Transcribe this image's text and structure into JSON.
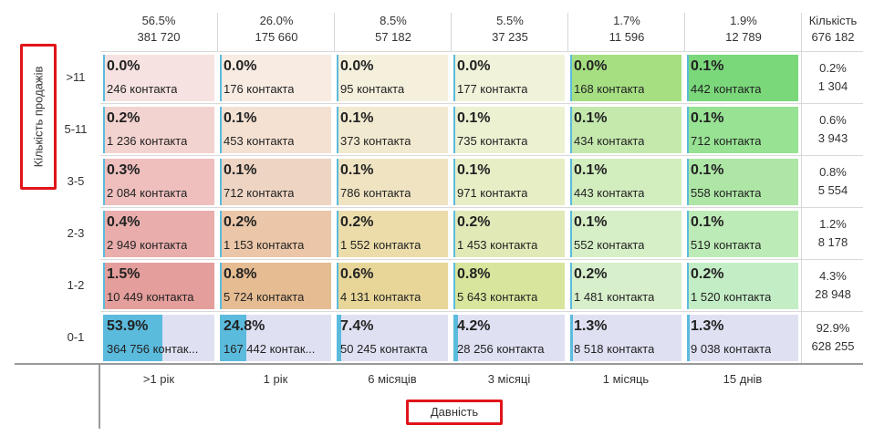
{
  "columns": [
    {
      "pct": "56.5%",
      "count": "381 720",
      "label": ">1 рік"
    },
    {
      "pct": "26.0%",
      "count": "175 660",
      "label": "1 рік"
    },
    {
      "pct": "8.5%",
      "count": "57 182",
      "label": "6 місяців"
    },
    {
      "pct": "5.5%",
      "count": "37 235",
      "label": "3 місяці"
    },
    {
      "pct": "1.7%",
      "count": "11 596",
      "label": "1 місяць"
    },
    {
      "pct": "1.9%",
      "count": "12 789",
      "label": "15 днів"
    }
  ],
  "total_header": {
    "label": "Кількість",
    "value": "676 182"
  },
  "y_axis_title": "Кількість продажів",
  "x_axis_title": "Давність",
  "rows": [
    {
      "label": ">11",
      "total_pct": "0.2%",
      "total_count": "1 304",
      "cells": [
        {
          "pct": "0.0%",
          "count": "246 контакта",
          "bg": "#f6e2e0"
        },
        {
          "pct": "0.0%",
          "count": "176 контакта",
          "bg": "#f7ebe2"
        },
        {
          "pct": "0.0%",
          "count": "95 контакта",
          "bg": "#f4f0dc"
        },
        {
          "pct": "0.0%",
          "count": "177 контакта",
          "bg": "#f0f3da"
        },
        {
          "pct": "0.0%",
          "count": "168 контакта",
          "bg": "#a6df82"
        },
        {
          "pct": "0.1%",
          "count": "442 контакта",
          "bg": "#7ad87a"
        }
      ]
    },
    {
      "label": "5-11",
      "total_pct": "0.6%",
      "total_count": "3 943",
      "cells": [
        {
          "pct": "0.2%",
          "count": "1 236 контакта",
          "bg": "#f3d3cf"
        },
        {
          "pct": "0.1%",
          "count": "453 контакта",
          "bg": "#f4e1d2"
        },
        {
          "pct": "0.1%",
          "count": "373 контакта",
          "bg": "#f2ead0"
        },
        {
          "pct": "0.1%",
          "count": "735 контакта",
          "bg": "#ecf1d2"
        },
        {
          "pct": "0.1%",
          "count": "434 контакта",
          "bg": "#c5e9ad"
        },
        {
          "pct": "0.1%",
          "count": "712 контакта",
          "bg": "#97e293"
        }
      ]
    },
    {
      "label": "3-5",
      "total_pct": "0.8%",
      "total_count": "5 554",
      "cells": [
        {
          "pct": "0.3%",
          "count": "2 084 контакта",
          "bg": "#eebfbd"
        },
        {
          "pct": "0.1%",
          "count": "712 контакта",
          "bg": "#eed4c2"
        },
        {
          "pct": "0.1%",
          "count": "786 контакта",
          "bg": "#efe3c2"
        },
        {
          "pct": "0.1%",
          "count": "971 контакта",
          "bg": "#e7eec6"
        },
        {
          "pct": "0.1%",
          "count": "443 контакта",
          "bg": "#d2edbe"
        },
        {
          "pct": "0.1%",
          "count": "558 контакта",
          "bg": "#aee6a6"
        }
      ]
    },
    {
      "label": "2-3",
      "total_pct": "1.2%",
      "total_count": "8 178",
      "cells": [
        {
          "pct": "0.4%",
          "count": "2 949 контакта",
          "bg": "#e9aeac"
        },
        {
          "pct": "0.2%",
          "count": "1 153 контакта",
          "bg": "#ebc6a8"
        },
        {
          "pct": "0.2%",
          "count": "1 552 контакта",
          "bg": "#ebdcaa"
        },
        {
          "pct": "0.2%",
          "count": "1 453 контакта",
          "bg": "#e1eab7"
        },
        {
          "pct": "0.1%",
          "count": "552 контакта",
          "bg": "#d6efc6"
        },
        {
          "pct": "0.1%",
          "count": "519 контакта",
          "bg": "#bdebb7"
        }
      ]
    },
    {
      "label": "1-2",
      "total_pct": "4.3%",
      "total_count": "28 948",
      "cells": [
        {
          "pct": "1.5%",
          "count": "10 449 контакта",
          "bg": "#e49e9b"
        },
        {
          "pct": "0.8%",
          "count": "5 724 контакта",
          "bg": "#e6bc92"
        },
        {
          "pct": "0.6%",
          "count": "4 131 контакта",
          "bg": "#e7d698"
        },
        {
          "pct": "0.8%",
          "count": "5 643 контакта",
          "bg": "#d7e69c"
        },
        {
          "pct": "0.2%",
          "count": "1 481 контакта",
          "bg": "#d8efcb"
        },
        {
          "pct": "0.2%",
          "count": "1 520 контакта",
          "bg": "#c3edc5"
        }
      ]
    },
    {
      "label": "0-1",
      "total_pct": "92.9%",
      "total_count": "628 255",
      "cells": [
        {
          "pct": "53.9%",
          "count": "364 756 контак...",
          "bg": "#dfe1f3",
          "fill": 0.53
        },
        {
          "pct": "24.8%",
          "count": "167 442 контак...",
          "bg": "#dfe1f3",
          "fill": 0.24
        },
        {
          "pct": "7.4%",
          "count": "50 245 контакта",
          "bg": "#dfe1f3",
          "fill": 0.04
        },
        {
          "pct": "4.2%",
          "count": "28 256 контакта",
          "bg": "#dfe1f3",
          "fill": 0.04
        },
        {
          "pct": "1.3%",
          "count": "8 518 контакта",
          "bg": "#dfe1f3",
          "fill": 0.013
        },
        {
          "pct": "1.3%",
          "count": "9 038 контакта",
          "bg": "#dfe1f3",
          "fill": 0.013
        }
      ]
    }
  ],
  "colors": {
    "bar_fill": "#5bbbdd",
    "highlight": "#e0141b"
  }
}
